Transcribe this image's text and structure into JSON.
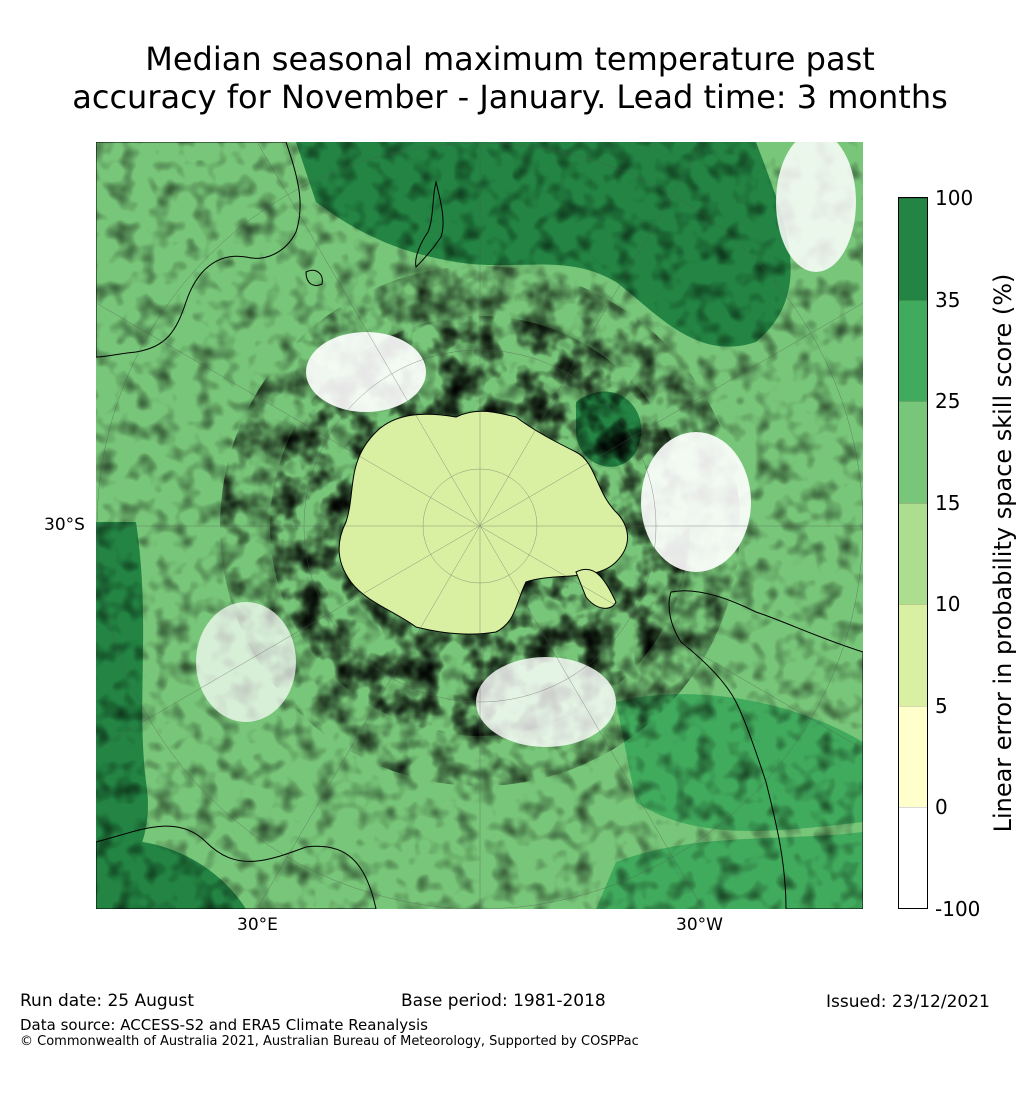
{
  "title_line1": "Median seasonal maximum temperature past",
  "title_line2": "accuracy for November - January. Lead time: 3 months",
  "map": {
    "projection": "south-polar-stereographic",
    "lat_labels": [
      "30°S"
    ],
    "lon_labels": [
      "30°E",
      "30°W"
    ]
  },
  "colorbar": {
    "label": "Linear error in probability space skill score (%)",
    "ticks": [
      "100",
      "35",
      "25",
      "15",
      "10",
      "5",
      "0",
      "-100"
    ],
    "bins": [
      {
        "range": "35-100",
        "color": "#238443"
      },
      {
        "range": "25-35",
        "color": "#41ab5d"
      },
      {
        "range": "15-25",
        "color": "#78c679"
      },
      {
        "range": "10-15",
        "color": "#addd8e"
      },
      {
        "range": "5-10",
        "color": "#d9f0a3"
      },
      {
        "range": "0-5",
        "color": "#ffffcc"
      },
      {
        "range": "-100-0",
        "color": "#ffffff"
      }
    ]
  },
  "footer": {
    "run_date": "Run date: 25 August",
    "base_period": "Base period: 1981-2018",
    "issued": "Issued: 23/12/2021",
    "data_source": "Data source: ACCESS-S2 and ERA5 Climate Reanalysis",
    "copyright": "© Commonwealth of Australia 2021, Australian Bureau of Meteorology, Supported by COSPPac"
  }
}
